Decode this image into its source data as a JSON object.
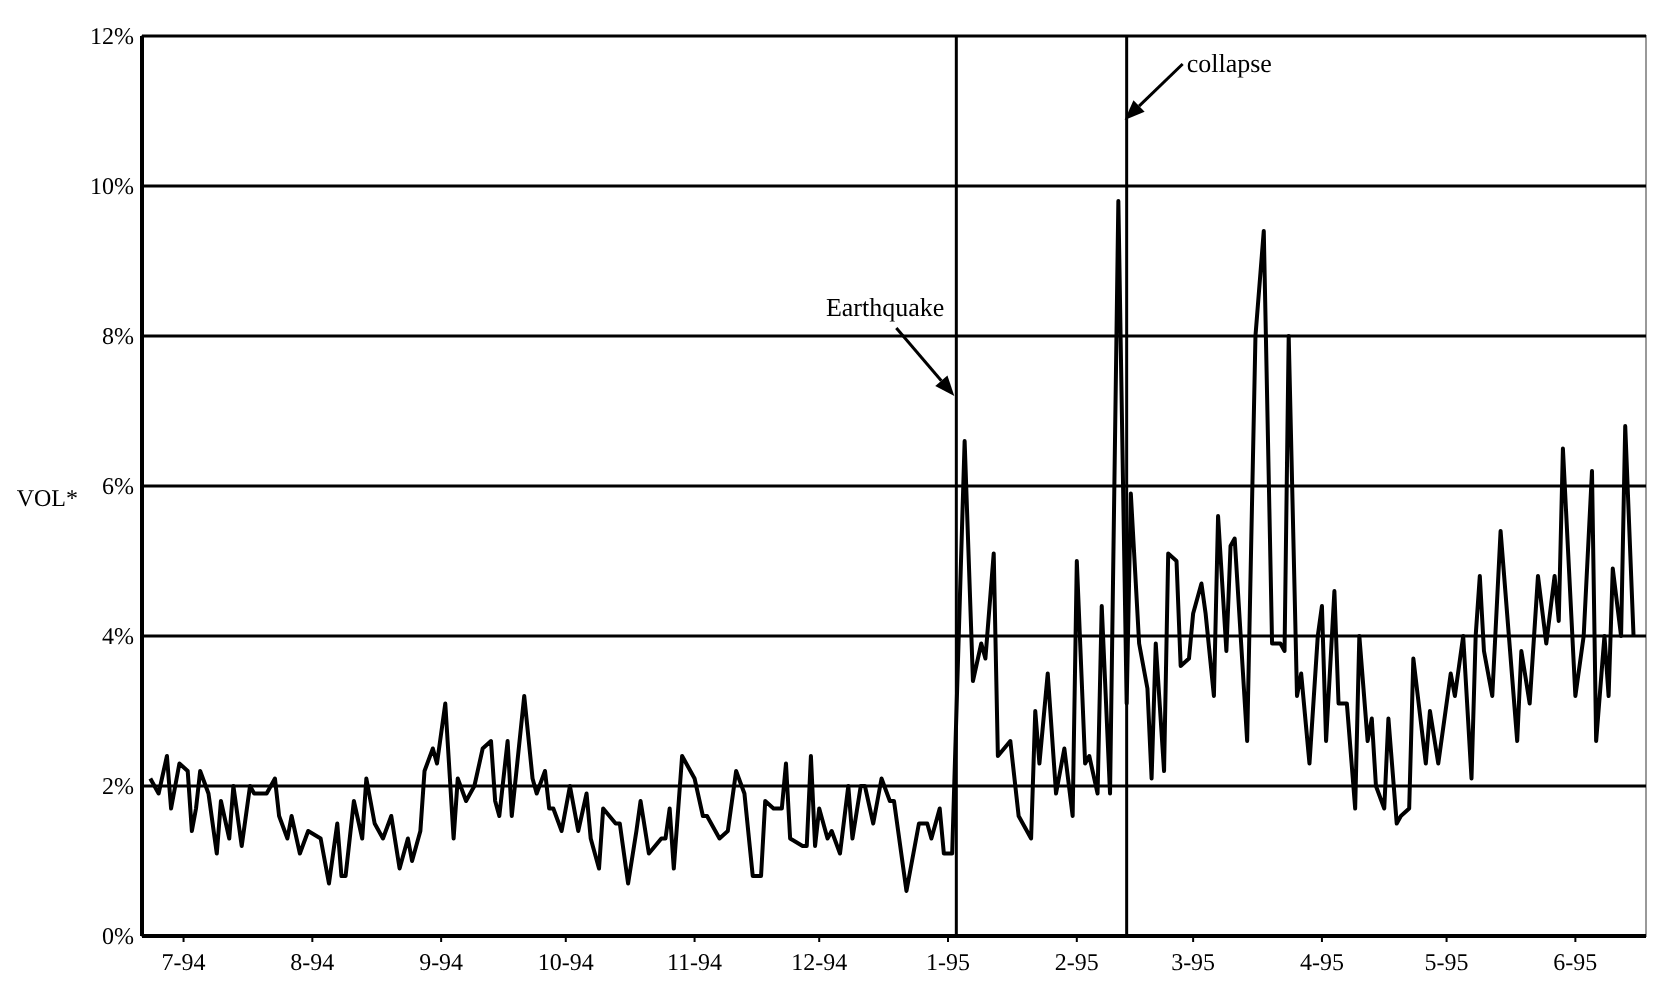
{
  "chart_data": {
    "type": "line",
    "ylabel": "VOL*",
    "color": "#000000",
    "grid": "y",
    "line_style": "solid",
    "x": [
      "1994-07-07",
      "1994-07-09",
      "1994-07-11",
      "1994-07-12",
      "1994-07-14",
      "1994-07-16",
      "1994-07-17",
      "1994-07-18",
      "1994-07-19",
      "1994-07-21",
      "1994-07-23",
      "1994-07-24",
      "1994-07-26",
      "1994-07-27",
      "1994-07-29",
      "1994-07-31",
      "1994-08-01",
      "1994-08-03",
      "1994-08-04",
      "1994-08-06",
      "1994-08-07",
      "1994-08-09",
      "1994-08-10",
      "1994-08-12",
      "1994-08-14",
      "1994-08-17",
      "1994-08-19",
      "1994-08-21",
      "1994-08-22",
      "1994-08-23",
      "1994-08-25",
      "1994-08-27",
      "1994-08-28",
      "1994-08-30",
      "1994-09-01",
      "1994-09-03",
      "1994-09-05",
      "1994-09-07",
      "1994-09-08",
      "1994-09-10",
      "1994-09-11",
      "1994-09-13",
      "1994-09-14",
      "1994-09-16",
      "1994-09-18",
      "1994-09-19",
      "1994-09-21",
      "1994-09-23",
      "1994-09-25",
      "1994-09-27",
      "1994-09-28",
      "1994-09-29",
      "1994-10-01",
      "1994-10-02",
      "1994-10-05",
      "1994-10-07",
      "1994-10-08",
      "1994-10-10",
      "1994-10-11",
      "1994-10-12",
      "1994-10-14",
      "1994-10-16",
      "1994-10-18",
      "1994-10-20",
      "1994-10-21",
      "1994-10-23",
      "1994-10-24",
      "1994-10-27",
      "1994-10-28",
      "1994-10-30",
      "1994-11-01",
      "1994-11-02",
      "1994-11-04",
      "1994-11-07",
      "1994-11-08",
      "1994-11-09",
      "1994-11-10",
      "1994-11-12",
      "1994-11-14",
      "1994-11-15",
      "1994-11-17",
      "1994-11-18",
      "1994-11-20",
      "1994-11-21",
      "1994-11-23",
      "1994-11-25",
      "1994-11-27",
      "1994-11-29",
      "1994-12-01",
      "1994-12-02",
      "1994-12-04",
      "1994-12-06",
      "1994-12-07",
      "1994-12-08",
      "1994-12-11",
      "1994-12-12",
      "1994-12-13",
      "1994-12-14",
      "1994-12-15",
      "1994-12-17",
      "1994-12-18",
      "1994-12-20",
      "1994-12-22",
      "1994-12-23",
      "1994-12-25",
      "1994-12-26",
      "1994-12-28",
      "1994-12-30",
      "1995-01-01",
      "1995-01-02",
      "1995-01-03",
      "1995-01-05",
      "1995-01-08",
      "1995-01-10",
      "1995-01-11",
      "1995-01-13",
      "1995-01-14",
      "1995-01-16",
      "1995-01-19",
      "1995-01-21",
      "1995-01-23",
      "1995-01-24",
      "1995-01-26",
      "1995-01-27",
      "1995-01-30",
      "1995-02-01",
      "1995-02-04",
      "1995-02-05",
      "1995-02-06",
      "1995-02-08",
      "1995-02-10",
      "1995-02-12",
      "1995-02-14",
      "1995-02-15",
      "1995-02-17",
      "1995-02-18",
      "1995-02-20",
      "1995-02-21",
      "1995-02-23",
      "1995-02-25",
      "1995-02-27",
      "1995-02-28",
      "1995-03-02",
      "1995-03-04",
      "1995-03-05",
      "1995-03-06",
      "1995-03-08",
      "1995-03-09",
      "1995-03-11",
      "1995-03-12",
      "1995-03-14",
      "1995-03-15",
      "1995-03-17",
      "1995-03-18",
      "1995-03-20",
      "1995-03-21",
      "1995-03-23",
      "1995-03-24",
      "1995-03-25",
      "1995-03-28",
      "1995-03-30",
      "1995-04-01",
      "1995-04-03",
      "1995-04-05",
      "1995-04-06",
      "1995-04-07",
      "1995-04-09",
      "1995-04-10",
      "1995-04-12",
      "1995-04-14",
      "1995-04-15",
      "1995-04-16",
      "1995-04-18",
      "1995-04-19",
      "1995-04-21",
      "1995-04-23",
      "1995-04-24",
      "1995-04-26",
      "1995-04-27",
      "1995-04-28",
      "1995-04-30",
      "1995-05-01",
      "1995-05-03",
      "1995-05-04",
      "1995-05-06",
      "1995-05-07",
      "1995-05-10",
      "1995-05-11",
      "1995-05-13",
      "1995-05-16",
      "1995-05-17",
      "1995-05-19",
      "1995-05-21",
      "1995-05-22",
      "1995-05-23",
      "1995-05-24",
      "1995-05-26",
      "1995-05-28",
      "1995-05-30",
      "1995-06-01",
      "1995-06-02",
      "1995-06-04",
      "1995-06-06",
      "1995-06-08",
      "1995-06-10",
      "1995-06-11",
      "1995-06-12",
      "1995-06-15",
      "1995-06-17",
      "1995-06-19",
      "1995-06-20",
      "1995-06-22",
      "1995-06-23",
      "1995-06-24",
      "1995-06-26",
      "1995-06-27",
      "1995-06-29"
    ],
    "values": [
      2.1,
      1.9,
      2.4,
      1.7,
      2.3,
      2.2,
      1.4,
      1.7,
      2.2,
      1.9,
      1.1,
      1.8,
      1.3,
      2.0,
      1.2,
      2.0,
      1.9,
      1.9,
      1.9,
      2.1,
      1.6,
      1.3,
      1.6,
      1.1,
      1.4,
      1.3,
      0.7,
      1.5,
      0.8,
      0.8,
      1.8,
      1.3,
      2.1,
      1.5,
      1.3,
      1.6,
      0.9,
      1.3,
      1.0,
      1.4,
      2.2,
      2.5,
      2.3,
      3.1,
      1.3,
      2.1,
      1.8,
      2.0,
      2.5,
      2.6,
      1.8,
      1.6,
      2.6,
      1.6,
      3.2,
      2.1,
      1.9,
      2.2,
      1.7,
      1.7,
      1.4,
      2.0,
      1.4,
      1.9,
      1.3,
      0.9,
      1.7,
      1.5,
      1.5,
      0.7,
      1.4,
      1.8,
      1.1,
      1.3,
      1.3,
      1.7,
      0.9,
      2.4,
      2.2,
      2.1,
      1.6,
      1.6,
      1.4,
      1.3,
      1.4,
      2.2,
      1.9,
      0.8,
      0.8,
      1.8,
      1.7,
      1.7,
      2.3,
      1.3,
      1.2,
      1.2,
      2.4,
      1.2,
      1.7,
      1.3,
      1.4,
      1.1,
      2.0,
      1.3,
      2.0,
      2.0,
      1.5,
      2.1,
      1.8,
      1.8,
      1.4,
      0.6,
      1.5,
      1.5,
      1.3,
      1.7,
      1.1,
      1.1,
      6.6,
      3.4,
      3.9,
      3.7,
      5.1,
      2.4,
      2.6,
      1.6,
      1.3,
      3.0,
      2.3,
      3.5,
      1.9,
      2.5,
      1.6,
      5.0,
      2.3,
      2.4,
      1.9,
      4.4,
      1.9,
      9.8,
      3.1,
      5.9,
      3.9,
      3.3,
      2.1,
      3.9,
      2.2,
      5.1,
      5.0,
      3.6,
      3.7,
      4.3,
      4.7,
      4.3,
      3.2,
      5.6,
      3.8,
      5.2,
      5.3,
      2.6,
      8.0,
      9.4,
      3.9,
      3.9,
      3.8,
      8.0,
      3.2,
      3.5,
      2.3,
      4.0,
      4.4,
      2.6,
      4.6,
      3.1,
      3.1,
      1.7,
      4.0,
      2.6,
      2.9,
      2.0,
      1.7,
      2.9,
      1.5,
      1.6,
      1.7,
      3.7,
      2.3,
      3.0,
      2.3,
      3.5,
      3.2,
      4.0,
      2.1,
      4.0,
      4.8,
      3.8,
      3.2,
      5.4,
      4.0,
      2.6,
      3.8,
      3.1,
      4.8,
      3.9,
      4.8,
      4.2,
      6.5,
      3.2,
      4.0,
      6.2,
      2.6,
      4.0,
      3.2,
      4.9,
      4.0,
      6.8,
      4.0
    ],
    "xlim": [
      "1994-07-05",
      "1995-07-02"
    ],
    "xticks": [
      {
        "value": "1994-07-15",
        "label": "7-94"
      },
      {
        "value": "1994-08-15",
        "label": "8-94"
      },
      {
        "value": "1994-09-15",
        "label": "9-94"
      },
      {
        "value": "1994-10-15",
        "label": "10-94"
      },
      {
        "value": "1994-11-15",
        "label": "11-94"
      },
      {
        "value": "1994-12-15",
        "label": "12-94"
      },
      {
        "value": "1995-01-15",
        "label": "1-95"
      },
      {
        "value": "1995-02-15",
        "label": "2-95"
      },
      {
        "value": "1995-03-15",
        "label": "3-95"
      },
      {
        "value": "1995-04-15",
        "label": "4-95"
      },
      {
        "value": "1995-05-15",
        "label": "5-95"
      },
      {
        "value": "1995-06-15",
        "label": "6-95"
      }
    ],
    "ylim": [
      0,
      12
    ],
    "yticks": [
      {
        "value": 0,
        "label": "0%"
      },
      {
        "value": 2,
        "label": "2%"
      },
      {
        "value": 4,
        "label": "4%"
      },
      {
        "value": 6,
        "label": "6%"
      },
      {
        "value": 8,
        "label": "8%"
      },
      {
        "value": 10,
        "label": "10%"
      },
      {
        "value": 12,
        "label": "12%"
      }
    ],
    "ref_lines": [
      {
        "axis": "x",
        "value": "1995-01-17",
        "label": "Earthquake",
        "color": "#000000"
      },
      {
        "axis": "x",
        "value": "1995-02-27",
        "label": "collapse",
        "color": "#000000"
      }
    ]
  }
}
